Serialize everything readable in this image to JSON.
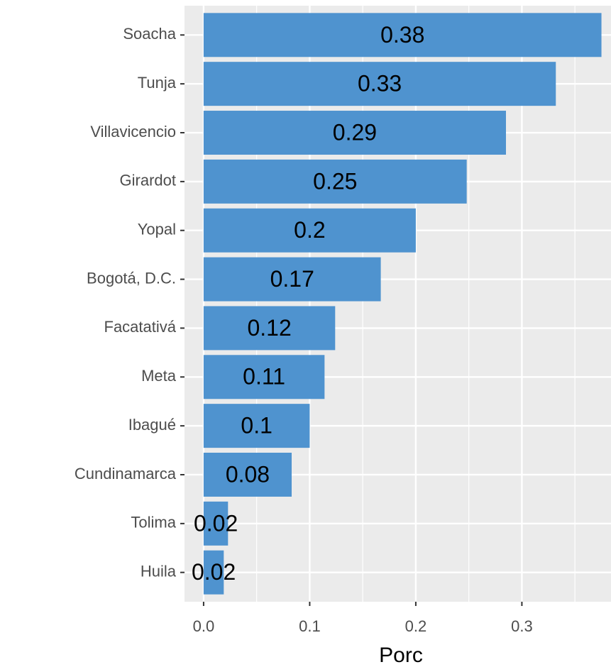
{
  "chart_data": {
    "type": "barh",
    "x_label": "Porc",
    "categories": [
      "Soacha",
      "Tunja",
      "Villavicencio",
      "Girardot",
      "Yopal",
      "Bogotá, D.C.",
      "Facatativá",
      "Meta",
      "Ibagué",
      "Cundinamarca",
      "Tolima",
      "Huila"
    ],
    "values": [
      0.375,
      0.332,
      0.285,
      0.248,
      0.2,
      0.167,
      0.124,
      0.114,
      0.1,
      0.083,
      0.023,
      0.019
    ],
    "value_labels": [
      "0.38",
      "0.33",
      "0.29",
      "0.25",
      "0.2",
      "0.17",
      "0.12",
      "0.11",
      "0.1",
      "0.08",
      "0.02",
      "0.02"
    ],
    "color": "#4f93cf",
    "xlim": [
      -0.018,
      0.384
    ],
    "xticks": [
      {
        "value": 0,
        "label": "0.0"
      },
      0.1,
      0.2,
      0.3
    ],
    "grid": true
  }
}
